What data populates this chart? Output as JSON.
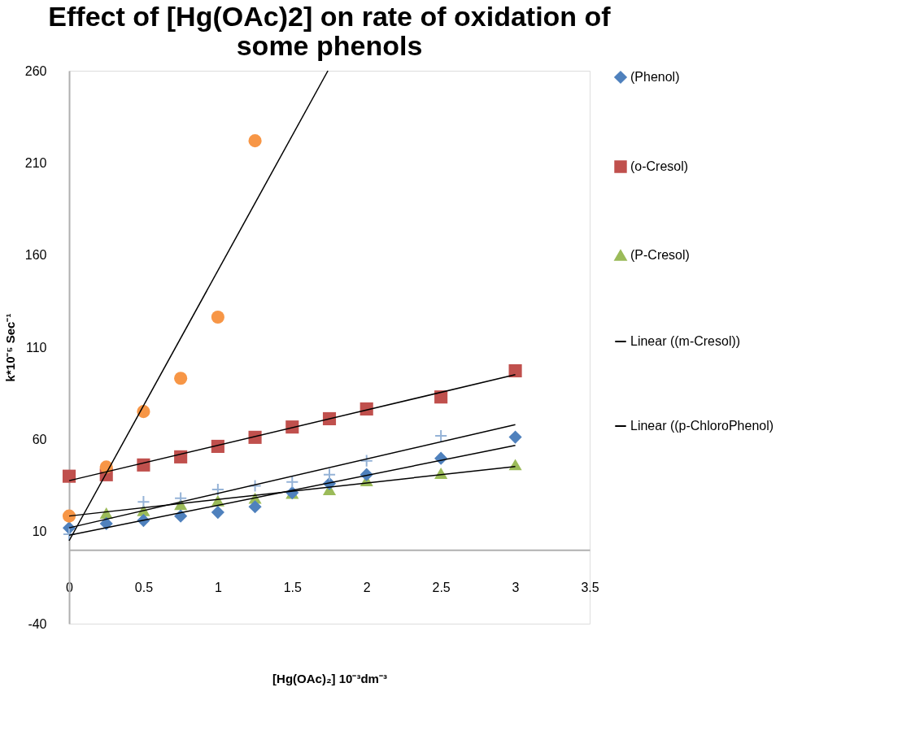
{
  "chart_data": {
    "type": "scatter",
    "title": "Effect of [Hg(OAc)2] on rate of oxidation of some phenols",
    "xlabel": "[Hg(OAc)₂] 10⁻³dm⁻³",
    "ylabel": "k*10⁻⁵ Sec⁻¹",
    "xlim": [
      0,
      3.5
    ],
    "xticks": [
      0,
      0.5,
      1,
      1.5,
      2,
      2.5,
      3,
      3.5
    ],
    "ylim": [
      -40,
      260
    ],
    "yticks": [
      -40,
      10,
      60,
      110,
      160,
      210,
      260
    ],
    "grid": false,
    "legend": "right",
    "series": [
      {
        "name": "(Phenol)",
        "color": "#4f81bd",
        "marker": "diamond",
        "x": [
          0,
          0.25,
          0.5,
          0.75,
          1,
          1.25,
          1.5,
          1.75,
          2,
          2.5,
          3
        ],
        "values": [
          11.9,
          14.3,
          16,
          18.4,
          20.4,
          23.4,
          31,
          36,
          40.9,
          49.7,
          61.2
        ]
      },
      {
        "name": "(o-Cresol)",
        "color": "#c0504d",
        "marker": "square",
        "x": [
          0,
          0.25,
          0.5,
          0.75,
          1,
          1.25,
          1.5,
          1.75,
          2,
          2.5,
          3
        ],
        "values": [
          40,
          40.8,
          46.1,
          50.5,
          56.2,
          61.1,
          66.7,
          71.2,
          76.5,
          83,
          97.2
        ]
      },
      {
        "name": "(P-Cresol)",
        "color": "#9bbb59",
        "marker": "triangle",
        "x": [
          0.25,
          0.5,
          0.75,
          1,
          1.25,
          1.5,
          1.75,
          2,
          2.5,
          3
        ],
        "values": [
          20,
          21.4,
          24.7,
          26.7,
          28.1,
          30.8,
          32.8,
          37.6,
          41.6,
          46.3
        ]
      },
      {
        "color": "#f79646",
        "marker": "circle",
        "x": [
          0,
          0.25,
          0.5,
          0.75,
          1,
          1.25
        ],
        "values": [
          18.4,
          45,
          75.1,
          93.1,
          126.3,
          222
        ]
      },
      {
        "color": "#95b3d7",
        "marker": "cross",
        "x": [
          0,
          0.5,
          0.75,
          1,
          1.25,
          1.5,
          1.75,
          2,
          2.5
        ],
        "values": [
          8.5,
          26.1,
          28.1,
          32.8,
          34.8,
          36.9,
          40.9,
          48.4,
          61.9
        ]
      },
      {
        "name": "Linear ((m-Cresol))",
        "type": "line",
        "color": "#000000",
        "marker": "none",
        "x": [
          0,
          1.74
        ],
        "values": [
          5,
          260
        ]
      },
      {
        "name": "Linear ((p-ChloroPhenol)",
        "type": "line",
        "color": "#000000",
        "marker": "none",
        "x": [
          0,
          3
        ],
        "values": [
          12,
          68
        ]
      },
      {
        "type": "line",
        "color": "#000000",
        "marker": "none",
        "x": [
          0,
          3
        ],
        "values": [
          37.6,
          95.1
        ]
      },
      {
        "type": "line",
        "color": "#000000",
        "marker": "none",
        "x": [
          0,
          3
        ],
        "values": [
          8,
          56.7
        ]
      },
      {
        "type": "line",
        "color": "#000000",
        "marker": "none",
        "x": [
          0,
          3
        ],
        "values": [
          18.4,
          45.3
        ]
      }
    ]
  }
}
